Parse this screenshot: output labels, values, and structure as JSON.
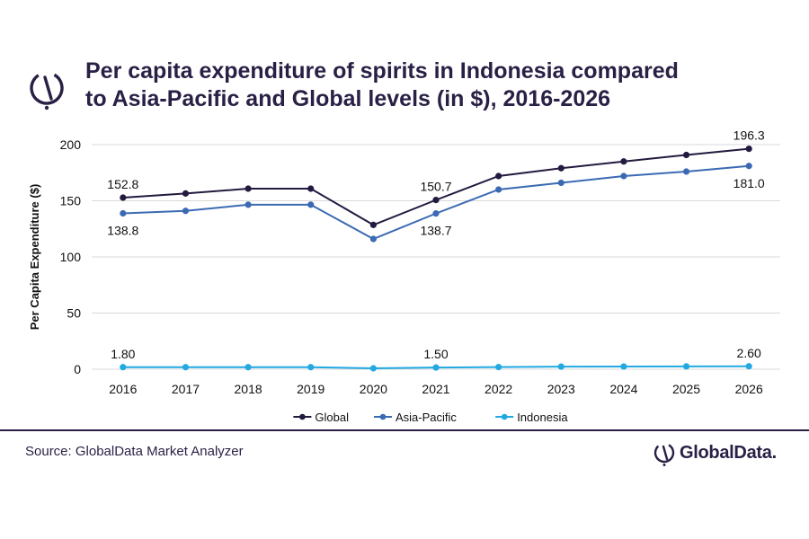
{
  "header": {
    "title_line1": "Per capita expenditure of spirits in Indonesia compared",
    "title_line2": "to Asia-Pacific and Global levels (in $), 2016-2026"
  },
  "footer": {
    "source": "Source: GlobalData Market Analyzer",
    "brand": "GlobalData."
  },
  "icons": {
    "logo": "globaldata-logo-icon"
  },
  "colors": {
    "title": "#2a1f45",
    "global": "#241a3f",
    "asia_pacific": "#3b6ab3",
    "indonesia": "#22a9e1",
    "grid": "#d9d9d9"
  },
  "chart_data": {
    "type": "line",
    "title": "Per capita expenditure of spirits in Indonesia compared to Asia-Pacific and Global levels (in $), 2016-2026",
    "xlabel": "",
    "ylabel": "Per Capita Expenditure ($)",
    "ylim": [
      0,
      200
    ],
    "yticks": [
      0,
      50,
      100,
      150,
      200
    ],
    "grid": true,
    "legend": "bottom",
    "categories": [
      "2016",
      "2017",
      "2018",
      "2019",
      "2020",
      "2021",
      "2022",
      "2023",
      "2024",
      "2025",
      "2026"
    ],
    "series": [
      {
        "name": "Global",
        "color": "#241a3f",
        "values": [
          152.8,
          156.5,
          160.8,
          160.8,
          128.5,
          150.7,
          172.0,
          179.0,
          185.0,
          190.8,
          196.3
        ],
        "labels": [
          {
            "index": 0,
            "text": "152.8",
            "pos": "above"
          },
          {
            "index": 5,
            "text": "150.7",
            "pos": "above"
          },
          {
            "index": 10,
            "text": "196.3",
            "pos": "above"
          }
        ]
      },
      {
        "name": "Asia-Pacific",
        "color": "#3b6ab3",
        "values": [
          138.8,
          141.0,
          146.5,
          146.5,
          116.0,
          138.7,
          160.0,
          166.0,
          172.0,
          176.0,
          181.0
        ],
        "labels": [
          {
            "index": 0,
            "text": "138.8",
            "pos": "below"
          },
          {
            "index": 5,
            "text": "138.7",
            "pos": "below"
          },
          {
            "index": 10,
            "text": "181.0",
            "pos": "below"
          }
        ]
      },
      {
        "name": "Indonesia",
        "color": "#22a9e1",
        "values": [
          1.8,
          1.8,
          1.8,
          1.8,
          0.8,
          1.5,
          1.9,
          2.3,
          2.4,
          2.5,
          2.6
        ],
        "labels": [
          {
            "index": 0,
            "text": "1.80",
            "pos": "above"
          },
          {
            "index": 5,
            "text": "1.50",
            "pos": "above"
          },
          {
            "index": 10,
            "text": "2.60",
            "pos": "above"
          }
        ]
      }
    ]
  }
}
